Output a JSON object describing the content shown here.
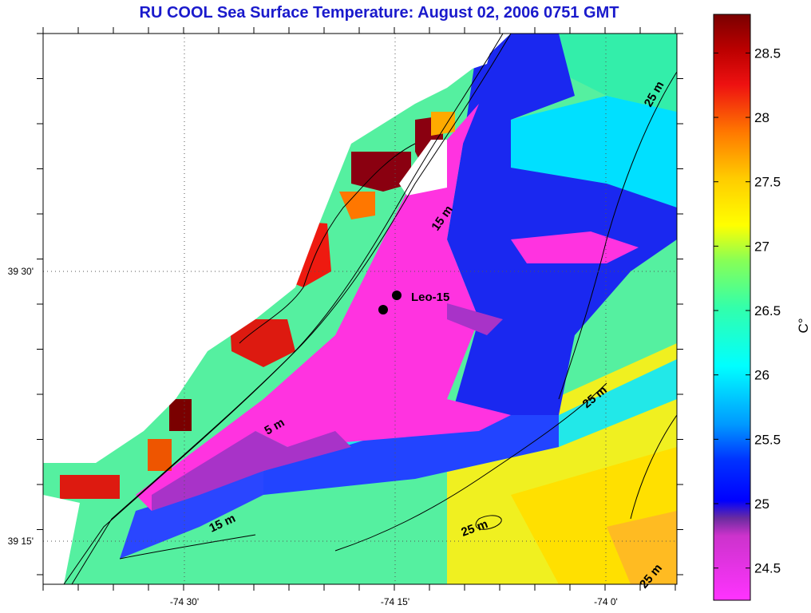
{
  "title": "RU COOL  Sea Surface Temperature:  August 02, 2006 0751 GMT",
  "axes": {
    "y_labels": [
      "39 30'",
      "39 15'"
    ],
    "x_labels": [
      "-74 30'",
      "-74 15'",
      "-74 0'"
    ]
  },
  "colorbar": {
    "unit": "C°",
    "ticks": [
      "28.5",
      "28",
      "27.5",
      "27",
      "26.5",
      "26",
      "25.5",
      "25",
      "24.5"
    ],
    "min": 24.25,
    "max": 28.8
  },
  "contours": [
    "15 m",
    "5 m",
    "15 m",
    "25 m",
    "25 m",
    "25 m",
    "25 m"
  ],
  "station": {
    "label": "Leo-15"
  },
  "grid": "dotted"
}
